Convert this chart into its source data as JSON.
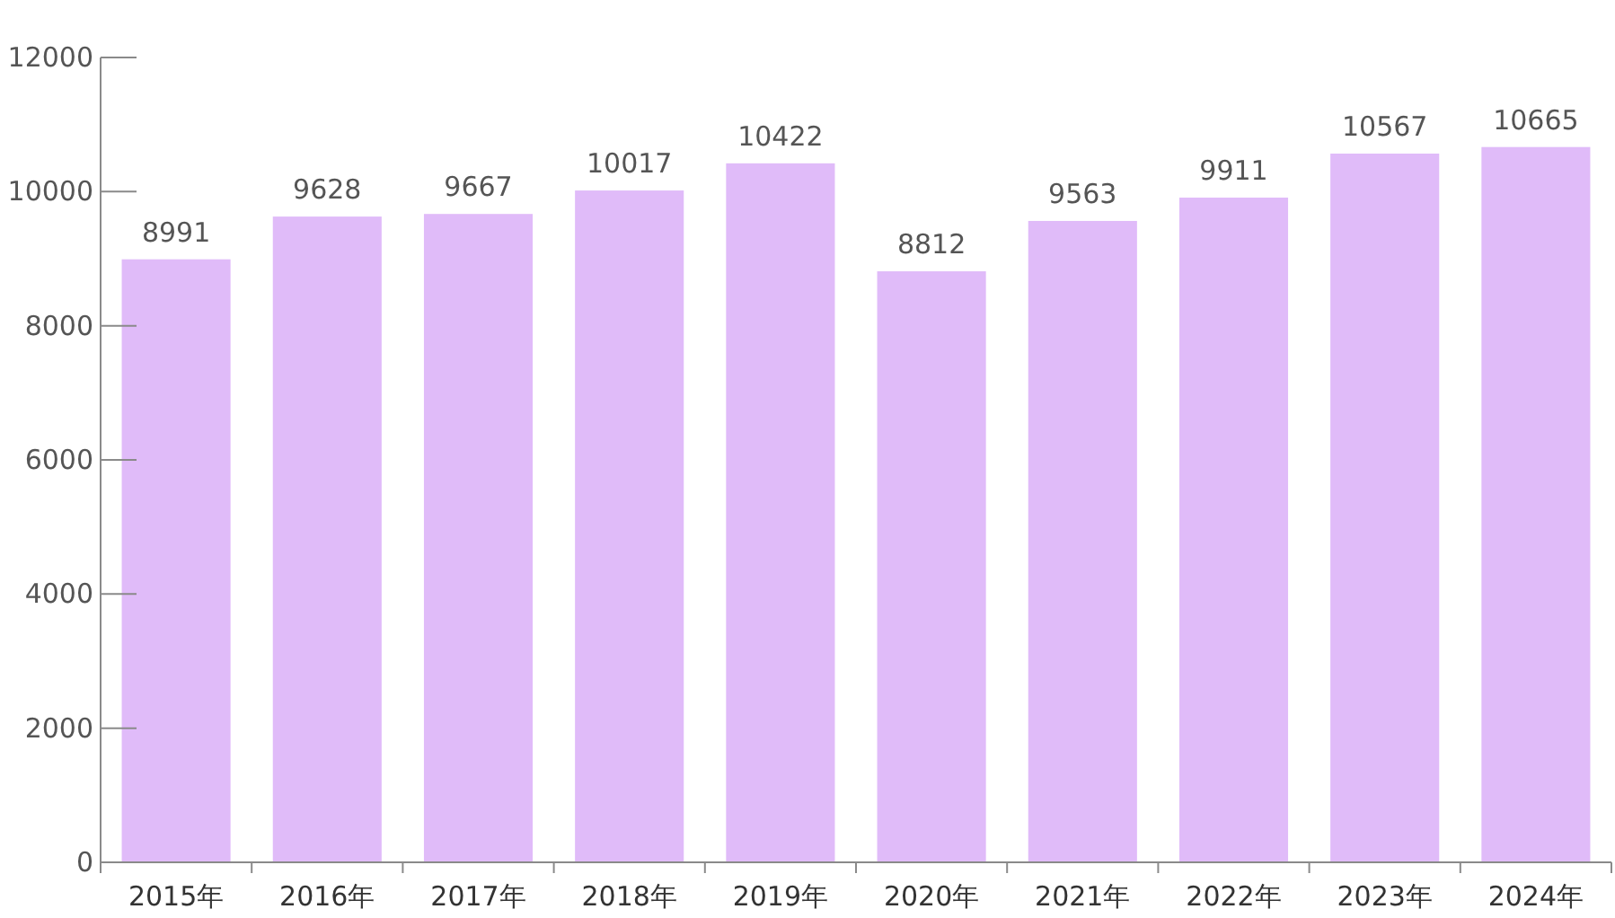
{
  "chart_data": {
    "type": "bar",
    "categories": [
      "2015年",
      "2016年",
      "2017年",
      "2018年",
      "2019年",
      "2020年",
      "2021年",
      "2022年",
      "2023年",
      "2024年"
    ],
    "values": [
      8991,
      9628,
      9667,
      10017,
      10422,
      8812,
      9563,
      9911,
      10567,
      10665
    ],
    "color": "#e0bbf9",
    "ylim": [
      0,
      12000
    ],
    "yticks": [
      0,
      2000,
      4000,
      6000,
      8000,
      10000,
      12000
    ],
    "data_labels": true
  }
}
